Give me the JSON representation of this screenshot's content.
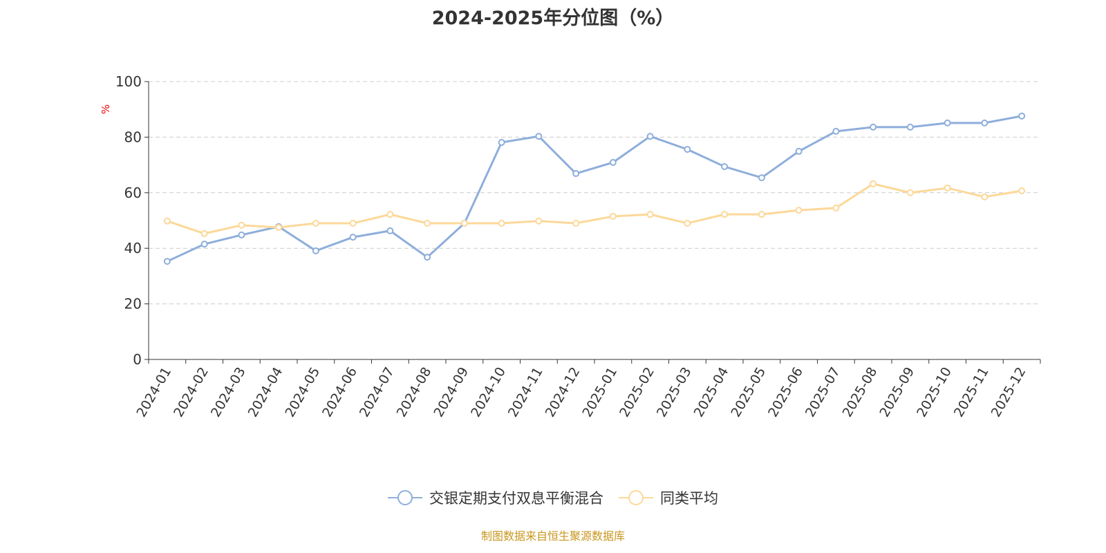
{
  "chart_data": {
    "type": "line",
    "title": "2024-2025年分位图（%）",
    "ylabel": "%",
    "xlabel": "",
    "ylim": [
      0,
      100
    ],
    "yticks": [
      0,
      20,
      40,
      60,
      80,
      100
    ],
    "grid": true,
    "legend_position": "bottom",
    "categories": [
      "2024-01",
      "2024-02",
      "2024-03",
      "2024-04",
      "2024-05",
      "2024-06",
      "2024-07",
      "2024-08",
      "2024-09",
      "2024-10",
      "2024-11",
      "2024-12",
      "2025-01",
      "2025-02",
      "2025-03",
      "2025-04",
      "2025-05",
      "2025-06",
      "2025-07",
      "2025-08",
      "2025-09",
      "2025-10",
      "2025-11",
      "2025-12"
    ],
    "series": [
      {
        "name": "交银定期支付双息平衡混合",
        "color": "#8eaedb",
        "values": [
          35.3,
          41.5,
          44.8,
          47.8,
          39.1,
          44.0,
          46.3,
          36.8,
          49.0,
          78.1,
          80.3,
          66.9,
          70.9,
          80.3,
          75.6,
          69.4,
          65.4,
          74.9,
          82.1,
          83.6,
          83.6,
          85.1,
          85.1,
          87.6
        ]
      },
      {
        "name": "同类平均",
        "color": "#fcd899",
        "values": [
          49.8,
          45.3,
          48.3,
          47.5,
          49.0,
          49.0,
          52.2,
          49.0,
          49.0,
          49.0,
          49.8,
          49.0,
          51.5,
          52.2,
          49.0,
          52.2,
          52.2,
          53.7,
          54.5,
          63.2,
          60.0,
          61.7,
          58.5,
          60.7
        ]
      }
    ]
  },
  "footer": "制图数据来自恒生聚源数据库"
}
